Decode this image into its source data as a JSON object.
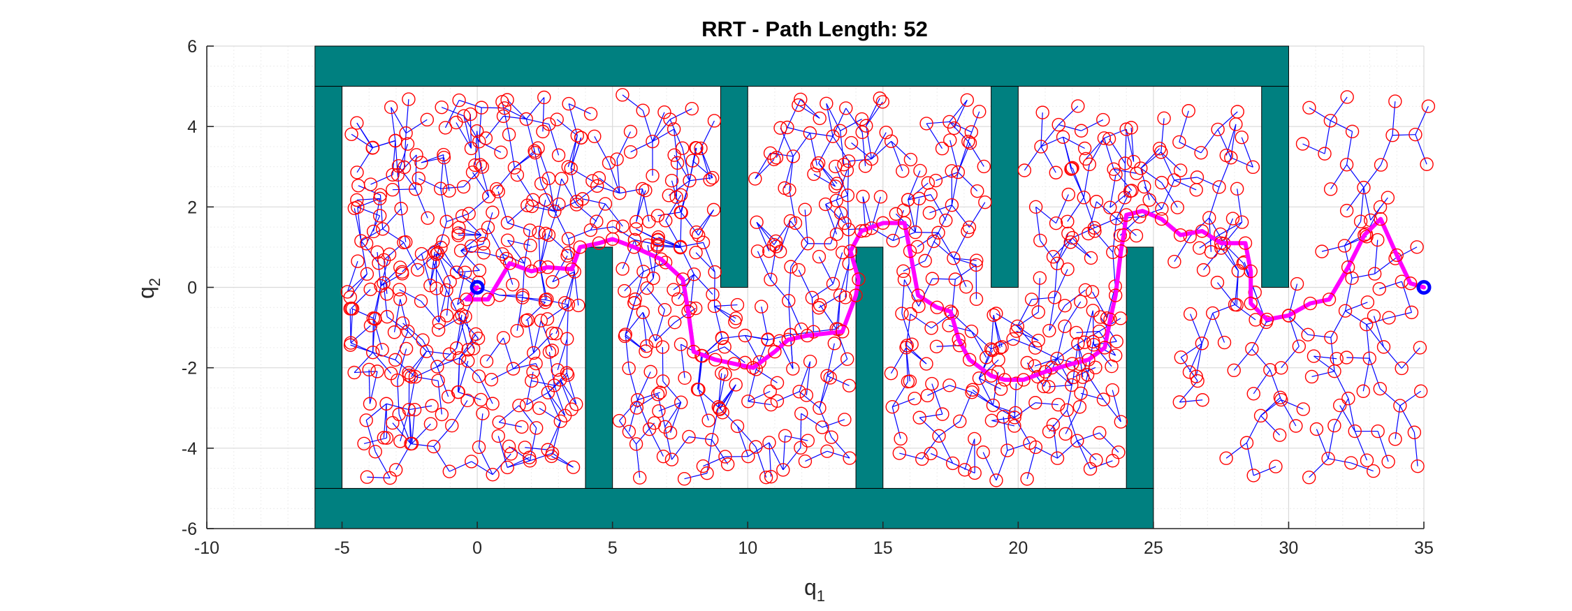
{
  "chart_data": {
    "type": "scatter",
    "title": "RRT - Path Length: 52",
    "xlabel": {
      "base": "q",
      "sub": "1"
    },
    "ylabel": {
      "base": "q",
      "sub": "2"
    },
    "xlim": [
      -10,
      35
    ],
    "ylim": [
      -6,
      6
    ],
    "xticks": [
      -10,
      -5,
      0,
      5,
      10,
      15,
      20,
      25,
      30,
      35
    ],
    "yticks": [
      -6,
      -4,
      -2,
      0,
      2,
      4,
      6
    ],
    "xtick_labels": [
      "-10",
      "-5",
      "0",
      "5",
      "10",
      "15",
      "20",
      "25",
      "30",
      "35"
    ],
    "ytick_labels": [
      "-6",
      "-4",
      "-2",
      "0",
      "2",
      "4",
      "6"
    ],
    "grid": true,
    "minor_grid": true,
    "colors": {
      "obstacle": "#008080",
      "node": "#ff0000",
      "edge": "#0000ff",
      "path": "#ff00ff",
      "endpoint": "#0000ff",
      "grid": "#d9d9d9",
      "axis": "#262626"
    },
    "obstacles": [
      {
        "name": "top-wall",
        "x": [
          -6,
          30
        ],
        "y": [
          5,
          6
        ]
      },
      {
        "name": "bottom-wall",
        "x": [
          -6,
          25
        ],
        "y": [
          -6,
          -5
        ]
      },
      {
        "name": "left-wall",
        "x": [
          -6,
          -5
        ],
        "y": [
          -5,
          5
        ]
      },
      {
        "name": "post-1",
        "x": [
          4,
          5
        ],
        "y": [
          -5,
          1
        ]
      },
      {
        "name": "post-2",
        "x": [
          9,
          10
        ],
        "y": [
          0,
          5
        ]
      },
      {
        "name": "post-3",
        "x": [
          14,
          15
        ],
        "y": [
          -5,
          1
        ]
      },
      {
        "name": "post-4",
        "x": [
          19,
          20
        ],
        "y": [
          0,
          5
        ]
      },
      {
        "name": "post-5",
        "x": [
          24,
          25
        ],
        "y": [
          -5,
          1
        ]
      },
      {
        "name": "post-6",
        "x": [
          29,
          30
        ],
        "y": [
          0,
          5
        ]
      }
    ],
    "start": {
      "x": 0,
      "y": 0
    },
    "goal": {
      "x": 35,
      "y": 0
    },
    "path": [
      [
        0,
        0
      ],
      [
        -0.4,
        -0.3
      ],
      [
        0.4,
        -0.3
      ],
      [
        1.2,
        0.6
      ],
      [
        2.0,
        0.4
      ],
      [
        2.6,
        0.5
      ],
      [
        3.5,
        0.45
      ],
      [
        3.8,
        1.0
      ],
      [
        4.5,
        1.1
      ],
      [
        5.0,
        1.2
      ],
      [
        5.8,
        1.0
      ],
      [
        6.8,
        0.7
      ],
      [
        7.6,
        0.2
      ],
      [
        7.8,
        -0.6
      ],
      [
        8.0,
        -1.6
      ],
      [
        8.8,
        -1.8
      ],
      [
        9.5,
        -1.9
      ],
      [
        10.2,
        -2.0
      ],
      [
        11.0,
        -1.6
      ],
      [
        11.5,
        -1.3
      ],
      [
        12.2,
        -1.2
      ],
      [
        13.5,
        -1.1
      ],
      [
        14.0,
        -0.2
      ],
      [
        14.1,
        0.2
      ],
      [
        13.8,
        0.9
      ],
      [
        14.2,
        1.4
      ],
      [
        15.0,
        1.6
      ],
      [
        15.8,
        1.6
      ],
      [
        16.0,
        0.9
      ],
      [
        16.3,
        -0.2
      ],
      [
        17.0,
        -0.5
      ],
      [
        17.5,
        -0.6
      ],
      [
        17.8,
        -1.3
      ],
      [
        18.2,
        -1.8
      ],
      [
        19.0,
        -2.2
      ],
      [
        19.5,
        -2.3
      ],
      [
        20.2,
        -2.3
      ],
      [
        21.0,
        -2.1
      ],
      [
        22.0,
        -1.9
      ],
      [
        22.6,
        -1.8
      ],
      [
        23.2,
        -1.5
      ],
      [
        23.4,
        -0.8
      ],
      [
        23.6,
        -0.2
      ],
      [
        23.8,
        0.9
      ],
      [
        23.9,
        1.3
      ],
      [
        24.0,
        1.8
      ],
      [
        24.6,
        1.9
      ],
      [
        25.3,
        1.7
      ],
      [
        26.0,
        1.3
      ],
      [
        26.8,
        1.4
      ],
      [
        27.5,
        1.1
      ],
      [
        28.4,
        1.1
      ],
      [
        28.6,
        0.4
      ],
      [
        28.6,
        -0.4
      ],
      [
        29.2,
        -0.8
      ],
      [
        30.0,
        -0.7
      ],
      [
        30.8,
        -0.4
      ],
      [
        31.5,
        -0.3
      ],
      [
        32.2,
        0.5
      ],
      [
        32.8,
        1.3
      ],
      [
        33.4,
        1.7
      ],
      [
        34.0,
        0.8
      ],
      [
        34.5,
        0.1
      ],
      [
        35,
        0
      ]
    ]
  }
}
